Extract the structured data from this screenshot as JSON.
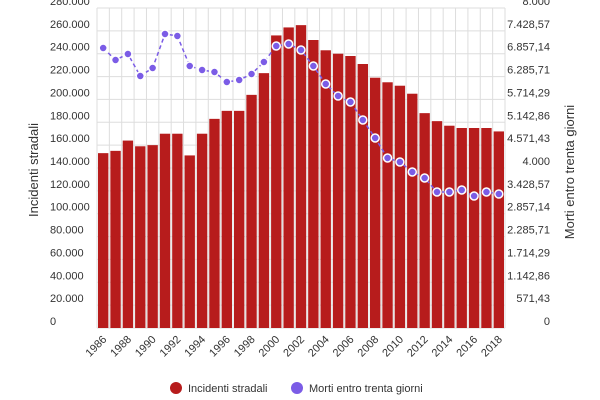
{
  "chart_data": {
    "type": "bar",
    "title": "",
    "xlabel": "",
    "ylabel": "Incidenti stradali",
    "y2label": "Morti entro trenta giorni",
    "ylim": [
      0,
      280000
    ],
    "y2lim": [
      0,
      8000
    ],
    "yticks": [
      "0",
      "20.000",
      "40.000",
      "60.000",
      "80.000",
      "100.000",
      "120.000",
      "140.000",
      "160.000",
      "180.000",
      "200.000",
      "220.000",
      "240.000",
      "260.000",
      "280.000"
    ],
    "y2ticks": [
      "0",
      "571,43",
      "1.142,86",
      "1.714,29",
      "2.285,71",
      "2.857,14",
      "3.428,57",
      "4.000",
      "4.571,43",
      "5.142,86",
      "5.714,29",
      "6.285,71",
      "6.857,14",
      "7.428,57",
      "8.000"
    ],
    "xticks": [
      "1986",
      "1988",
      "1990",
      "1992",
      "1994",
      "1996",
      "1998",
      "2000",
      "2002",
      "2004",
      "2006",
      "2008",
      "2010",
      "2012",
      "2014",
      "2016",
      "2018"
    ],
    "grid": true,
    "legend_position": "bottom",
    "years": [
      1986,
      1987,
      1988,
      1989,
      1990,
      1991,
      1992,
      1993,
      1994,
      1995,
      1996,
      1997,
      1998,
      1999,
      2000,
      2001,
      2002,
      2003,
      2004,
      2005,
      2006,
      2007,
      2008,
      2009,
      2010,
      2011,
      2012,
      2013,
      2014,
      2015,
      2016,
      2017,
      2018
    ],
    "series": [
      {
        "name": "Incidenti stradali",
        "kind": "bar",
        "axis": "left",
        "color": "#b71c1c",
        "values": [
          153000,
          155000,
          164000,
          159000,
          160000,
          170000,
          170000,
          151000,
          170000,
          183000,
          190000,
          190000,
          204000,
          223000,
          256000,
          263000,
          265000,
          252000,
          243000,
          240000,
          238000,
          231000,
          219000,
          215000,
          212000,
          205000,
          188000,
          181000,
          177000,
          175000,
          175000,
          175000,
          172000
        ]
      },
      {
        "name": "Morti entro trenta giorni",
        "kind": "line",
        "axis": "right",
        "color": "#7b5ce6",
        "values": [
          7000,
          6700,
          6850,
          6300,
          6500,
          7350,
          7300,
          6550,
          6450,
          6400,
          6150,
          6200,
          6350,
          6650,
          7050,
          7100,
          6950,
          6550,
          6100,
          5800,
          5650,
          5200,
          4750,
          4250,
          4150,
          3900,
          3750,
          3400,
          3400,
          3450,
          3300,
          3400,
          3350
        ]
      }
    ]
  }
}
